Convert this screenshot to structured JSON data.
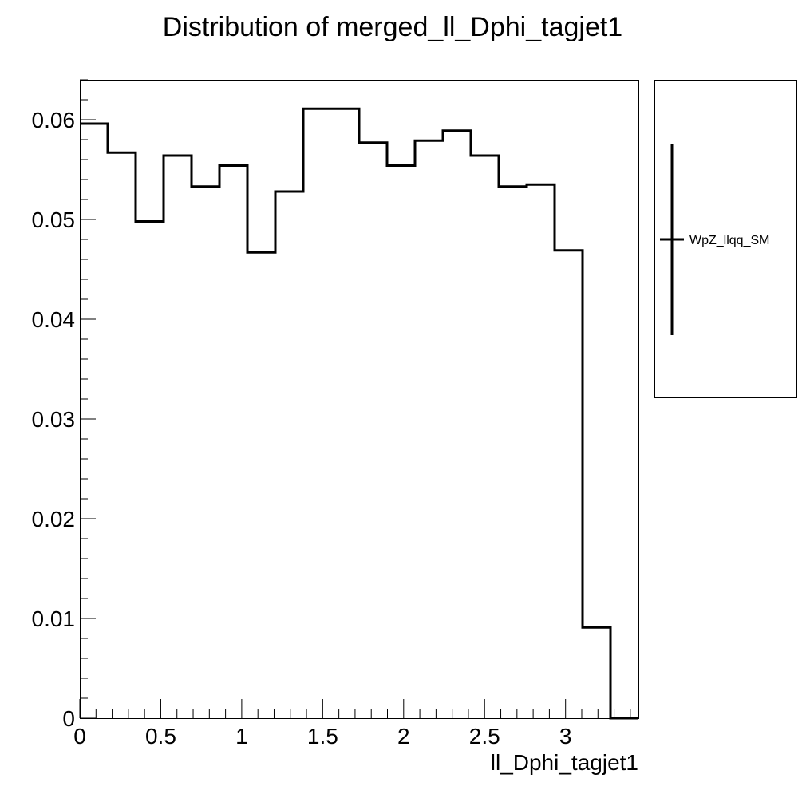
{
  "chart_data": {
    "type": "histogram",
    "title": "Distribution of merged_ll_Dphi_tagjet1",
    "xlabel": "ll_Dphi_tagjet1",
    "ylabel": "",
    "xlim": [
      0,
      3.45
    ],
    "ylim": [
      0,
      0.064
    ],
    "grid": false,
    "legend_position": "right",
    "x_ticks": [
      0,
      0.5,
      1,
      1.5,
      2,
      2.5,
      3
    ],
    "x_tick_labels": [
      "0",
      "0.5",
      "1",
      "1.5",
      "2",
      "2.5",
      "3"
    ],
    "y_ticks": [
      0,
      0.01,
      0.02,
      0.03,
      0.04,
      0.05,
      0.06
    ],
    "y_tick_labels": [
      "0",
      "0.01",
      "0.02",
      "0.03",
      "0.04",
      "0.05",
      "0.06"
    ],
    "bin_edges": [
      0,
      0.1725,
      0.345,
      0.5175,
      0.69,
      0.8625,
      1.035,
      1.2075,
      1.38,
      1.5525,
      1.725,
      1.8975,
      2.07,
      2.2425,
      2.415,
      2.5875,
      2.76,
      2.9325,
      3.105,
      3.2775,
      3.45
    ],
    "series": [
      {
        "name": "WpZ_llqq_SM",
        "color": "#000000",
        "values": [
          0.0596,
          0.0567,
          0.0498,
          0.0564,
          0.0533,
          0.0554,
          0.0467,
          0.0528,
          0.0611,
          0.0611,
          0.0577,
          0.0554,
          0.0579,
          0.0589,
          0.0564,
          0.0533,
          0.0535,
          0.0469,
          0.0091,
          0.0
        ]
      }
    ]
  }
}
